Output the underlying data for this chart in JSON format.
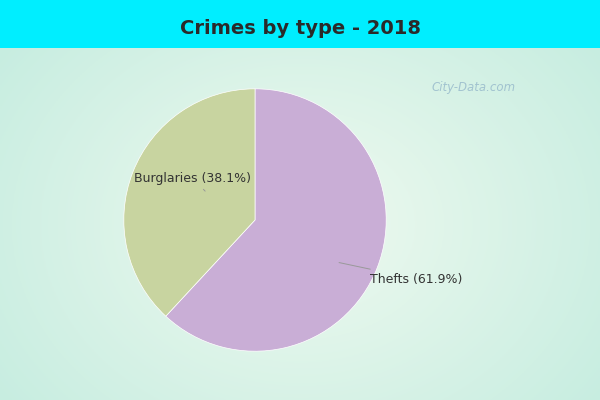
{
  "title": "Crimes by type - 2018",
  "slices": [
    {
      "label": "Thefts (61.9%)",
      "value": 61.9,
      "color": "#c9aed6"
    },
    {
      "label": "Burglaries (38.1%)",
      "value": 38.1,
      "color": "#c8d4a0"
    }
  ],
  "bg_color_top": "#00eeff",
  "bg_color_inner_center": "#e8f5e8",
  "bg_color_inner_edge": "#c8ede8",
  "title_fontsize": 14,
  "title_color": "#2a2a2a",
  "label_fontsize": 9,
  "label_color": "#333333",
  "watermark_text": "City-Data.com",
  "watermark_color": "#99bbcc"
}
